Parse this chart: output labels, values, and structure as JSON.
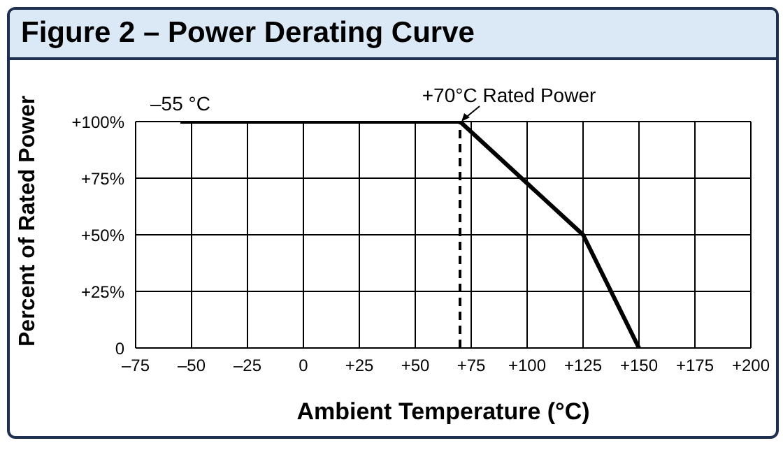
{
  "chart_data": {
    "type": "line",
    "title": "Figure 2 – Power Derating Curve",
    "xlabel": "Ambient Temperature (°C)",
    "ylabel": "Percent of Rated Power",
    "x": [
      -55,
      70,
      125,
      150
    ],
    "series": [
      {
        "color": "#000000",
        "values": [
          100,
          100,
          50,
          0
        ]
      }
    ],
    "xlim": [
      -75,
      200
    ],
    "xticks": [
      {
        "value": -75,
        "label": "–75"
      },
      {
        "value": -50,
        "label": "–50"
      },
      {
        "value": -25,
        "label": "–25"
      },
      0,
      {
        "value": 25,
        "label": "+25"
      },
      {
        "value": 50,
        "label": "+50"
      },
      {
        "value": 75,
        "label": "+75"
      },
      {
        "value": 100,
        "label": "+100"
      },
      {
        "value": 125,
        "label": "+125"
      },
      {
        "value": 150,
        "label": "+150"
      },
      {
        "value": 175,
        "label": "+175"
      },
      {
        "value": 200,
        "label": "+200"
      }
    ],
    "ylim": [
      0,
      100
    ],
    "yticks": [
      0,
      {
        "value": 25,
        "label": "+25%"
      },
      {
        "value": 50,
        "label": "+50%"
      },
      {
        "value": 75,
        "label": "+75%"
      },
      {
        "value": 100,
        "label": "+100%"
      }
    ],
    "grid": true,
    "marker": "none",
    "line_style": "solid",
    "ref_lines": [
      {
        "axis": "x",
        "value": 70,
        "color": "#000000",
        "line_style": "dashed"
      }
    ],
    "annotations": [
      {
        "text": "–55 °C",
        "x": -55,
        "y": 100
      },
      {
        "text": "+70°C Rated Power",
        "x": 70,
        "y": 100
      }
    ]
  }
}
